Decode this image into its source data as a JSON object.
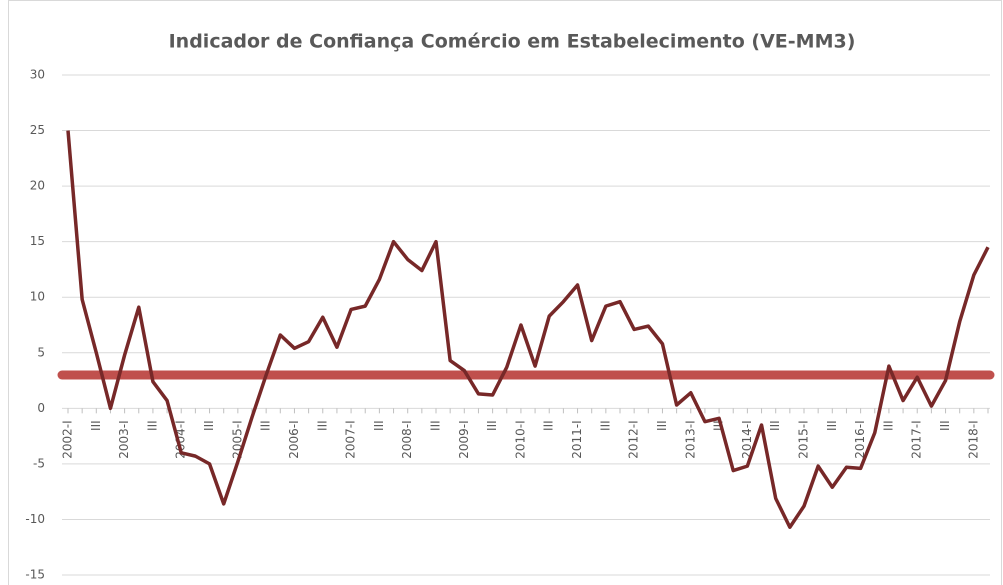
{
  "chart_data": {
    "type": "line",
    "title": "Indicador de Confiança Comércio em Estabelecimento (VE-MM3)",
    "categories": [
      "2002-I",
      null,
      "III",
      null,
      "2003-I",
      null,
      "III",
      null,
      "2004-I",
      null,
      "III",
      null,
      "2005-I",
      null,
      "III",
      null,
      "2006-I",
      null,
      "III",
      null,
      "2007-I",
      null,
      "III",
      null,
      "2008-I",
      null,
      "III",
      null,
      "2009-I",
      null,
      "III",
      null,
      "2010-I",
      null,
      "III",
      null,
      "2011-I",
      null,
      "III",
      null,
      "2012-I",
      null,
      "III",
      null,
      "2013-I",
      null,
      "III",
      null,
      "2014-I",
      null,
      "III",
      null,
      "2015-I",
      null,
      "III",
      null,
      "2016-I",
      null,
      "III",
      null,
      "2017-I",
      null,
      "III",
      null,
      "2018-I",
      null
    ],
    "series": [
      {
        "color": "#772828",
        "values": [
          25,
          9.8,
          5,
          0,
          4.8,
          9.1,
          2.4,
          0.7,
          -4,
          -4.3,
          -5,
          -8.6,
          -4.8,
          -0.8,
          3,
          6.6,
          5.4,
          6,
          8.2,
          5.5,
          8.9,
          9.2,
          11.6,
          15,
          13.4,
          12.4,
          15,
          4.3,
          3.4,
          1.3,
          1.2,
          3.7,
          7.5,
          3.8,
          8.3,
          9.6,
          11.1,
          6.1,
          9.2,
          9.6,
          7.1,
          7.4,
          5.8,
          0.3,
          1.4,
          -1.2,
          -0.9,
          -5.6,
          -5.2,
          -1.5,
          -8.1,
          -10.7,
          -8.8,
          -5.2,
          -7.1,
          -5.3,
          -5.4,
          -2.2,
          3.8,
          0.7,
          2.8,
          0.2,
          2.5,
          7.8,
          12,
          14.5
        ]
      }
    ],
    "reference_line": {
      "value": 3,
      "color": "#c0504d"
    },
    "ylim": [
      -15,
      30
    ],
    "yticks": [
      -15,
      -10,
      -5,
      0,
      5,
      10,
      15,
      20,
      25,
      30
    ],
    "grid": true
  }
}
